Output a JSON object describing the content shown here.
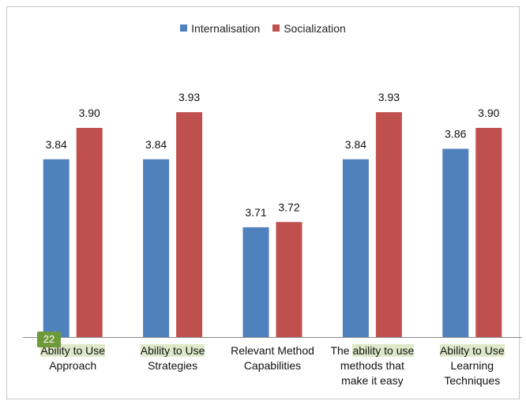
{
  "slide_badge": "22",
  "chart_data": {
    "type": "bar",
    "title": "",
    "xlabel": "",
    "ylabel": "",
    "ylim": [
      3.5,
      4.0
    ],
    "grid": false,
    "legend_position": "top",
    "categories": [
      [
        "Ability to Use",
        "Approach"
      ],
      [
        "Ability to Use",
        "Strategies"
      ],
      [
        "Relevant Method",
        "Capabilities"
      ],
      [
        "The ability to use",
        "methods that",
        "make it easy"
      ],
      [
        "Ability to Use",
        "Learning",
        "Techniques"
      ]
    ],
    "series": [
      {
        "name": "Internalisation",
        "color": "#4f81bd",
        "values": [
          3.84,
          3.84,
          3.71,
          3.84,
          3.86
        ]
      },
      {
        "name": "Socialization",
        "color": "#c0504d",
        "values": [
          3.9,
          3.93,
          3.72,
          3.93,
          3.9
        ]
      }
    ],
    "highlight_color": "#dfe8c9"
  }
}
